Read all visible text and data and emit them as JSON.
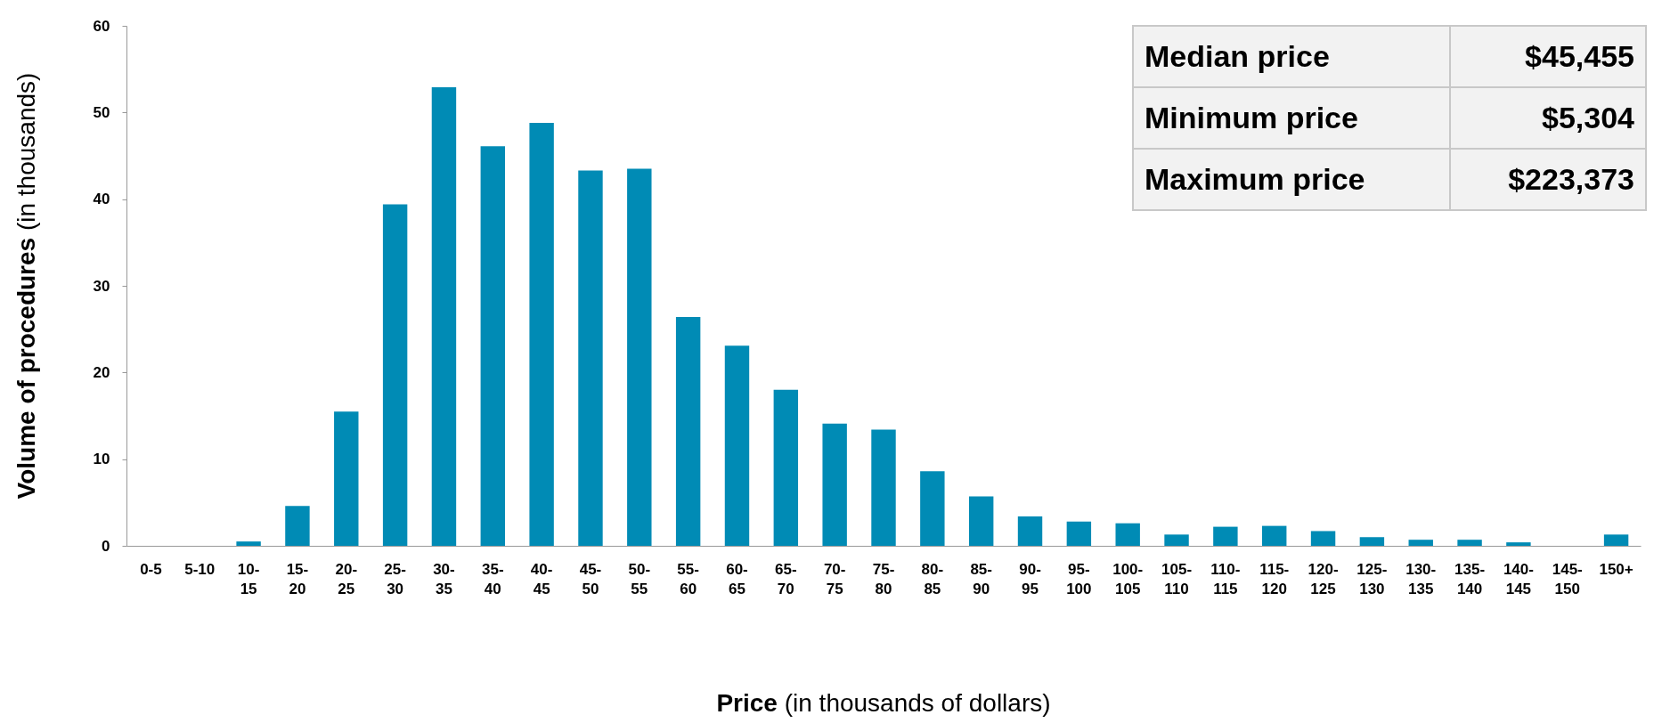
{
  "chart_data": {
    "type": "bar",
    "xlabel": "Price (in thousands of dollars)",
    "ylabel": "Volume of procedures (in thousands)",
    "categories": [
      "0-5",
      "5-10",
      "10-15",
      "15-20",
      "20-25",
      "25-30",
      "30-35",
      "35-40",
      "40-45",
      "45-50",
      "50-55",
      "55-60",
      "60-65",
      "65-70",
      "70-75",
      "75-80",
      "80-85",
      "85-90",
      "90-95",
      "95-100",
      "100-105",
      "105-110",
      "110-115",
      "115-120",
      "120-125",
      "125-130",
      "130-135",
      "135-140",
      "140-145",
      "145-150",
      "150+"
    ],
    "values": [
      0,
      0,
      0.5,
      4.6,
      15.5,
      39.4,
      52.9,
      46.1,
      48.8,
      43.3,
      43.5,
      26.4,
      23.1,
      18.0,
      14.1,
      13.4,
      8.6,
      5.7,
      3.4,
      2.8,
      2.6,
      1.3,
      2.2,
      2.3,
      1.7,
      1.0,
      0.7,
      0.7,
      0.4,
      0,
      1.3
    ],
    "color": "#008bb5",
    "ylim": [
      0,
      60
    ],
    "yticks": [
      0,
      10,
      20,
      30,
      40,
      50,
      60
    ],
    "grid": false,
    "annotations": [
      "Median price",
      "$45,455",
      "Minimum price",
      "$5,304",
      "Maximum price",
      "$223,373"
    ]
  }
}
